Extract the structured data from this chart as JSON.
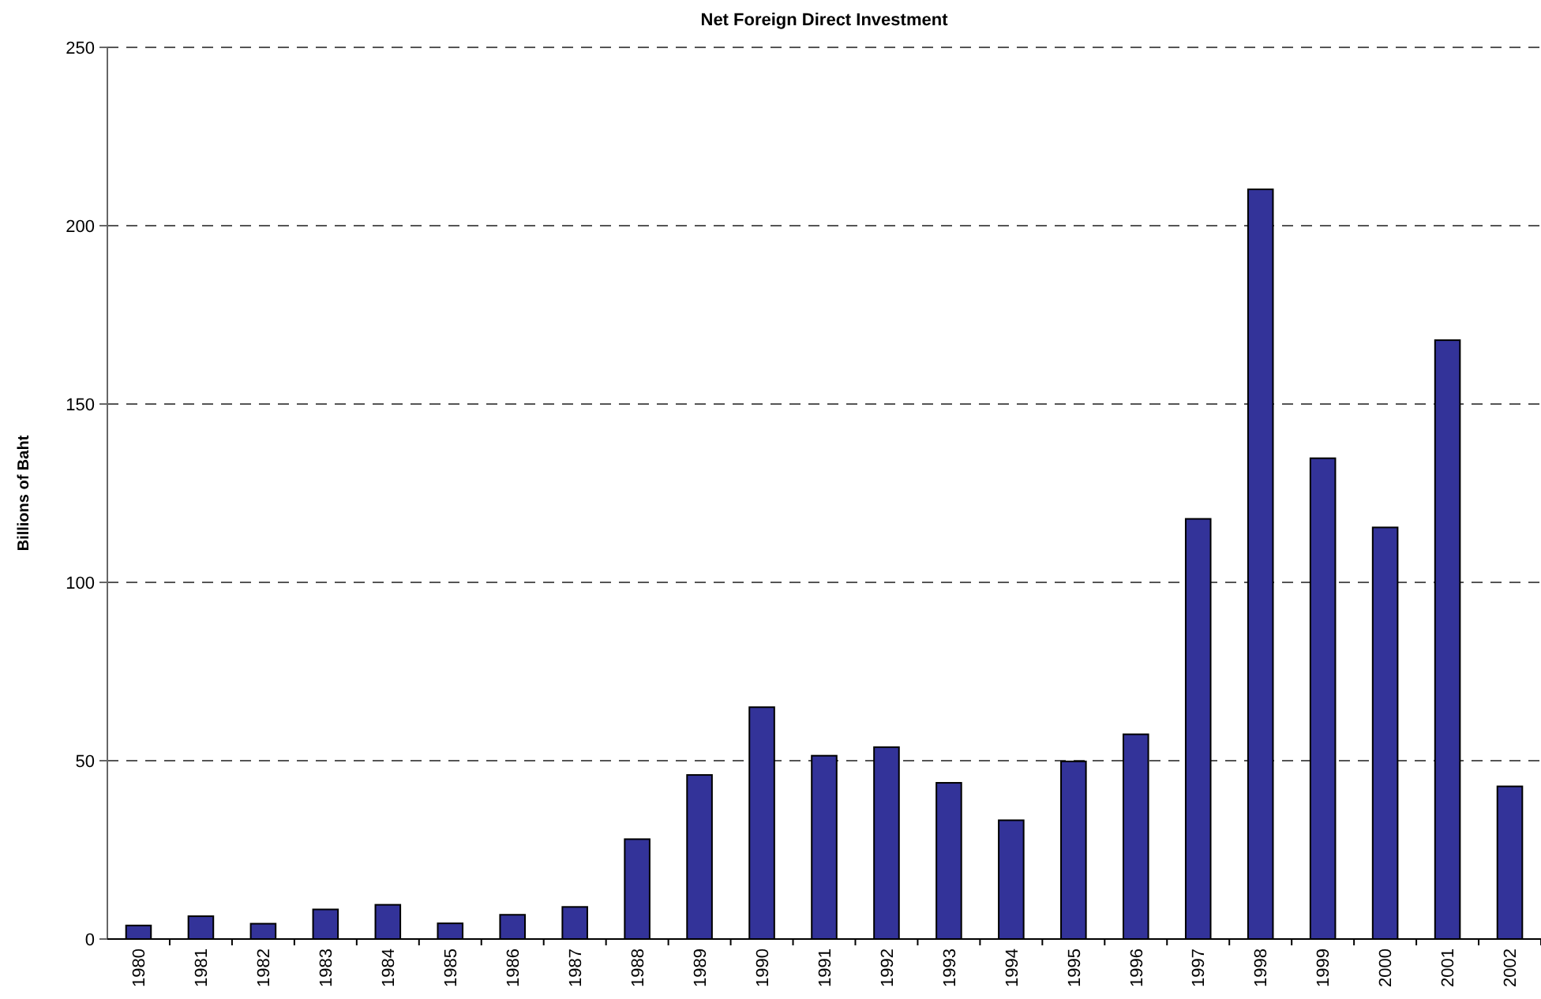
{
  "chart_data": {
    "type": "bar",
    "title": "Net Foreign Direct Investment",
    "ylabel": "Billions of Baht",
    "categories": [
      "1980",
      "1981",
      "1982",
      "1983",
      "1984",
      "1985",
      "1986",
      "1987",
      "1988",
      "1989",
      "1990",
      "1991",
      "1992",
      "1993",
      "1994",
      "1995",
      "1996",
      "1997",
      "1998",
      "1999",
      "2000",
      "2001",
      "2002"
    ],
    "values": [
      3.8,
      6.4,
      4.3,
      8.3,
      9.6,
      4.4,
      6.8,
      9.0,
      28,
      46,
      65,
      51.4,
      53.8,
      43.8,
      33.3,
      49.8,
      57.4,
      117.8,
      210.2,
      134.8,
      115.4,
      167.9,
      42.8
    ],
    "color": "#333399",
    "ylim": [
      0,
      250
    ],
    "yticks": [
      0,
      50,
      100,
      150,
      200,
      250
    ],
    "grid": "y"
  }
}
